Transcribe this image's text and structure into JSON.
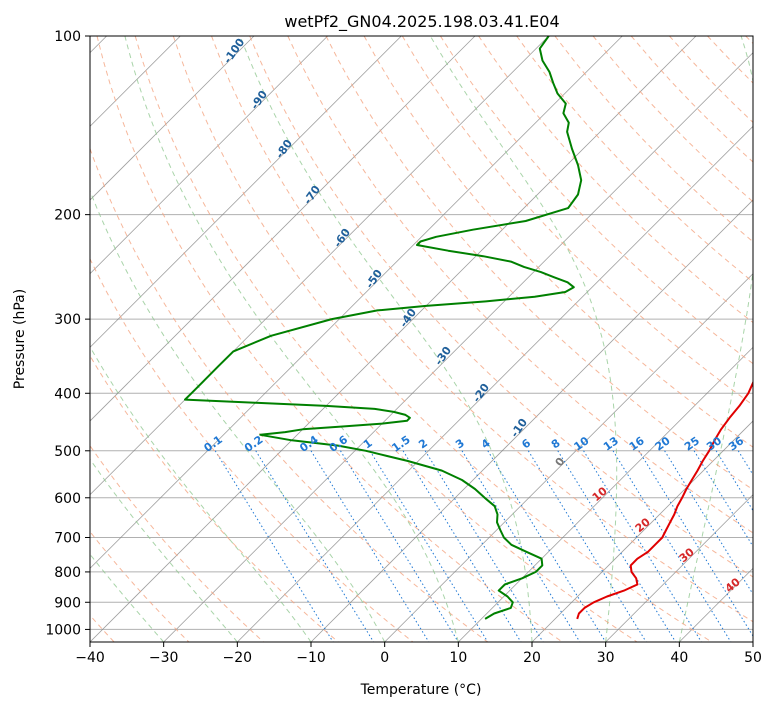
{
  "chart_data": {
    "type": "line",
    "title": "wetPf2_GN04.2025.198.03.41.E04",
    "xlabel": "Temperature (°C)",
    "ylabel": "Pressure (hPa)",
    "xlim": [
      -40,
      50
    ],
    "ylim": [
      1050,
      100
    ],
    "y_scale": "log",
    "skew": true,
    "grid": true,
    "x_ticks": [
      -40,
      -30,
      -20,
      -10,
      0,
      10,
      20,
      30,
      40,
      50
    ],
    "y_ticks": [
      100,
      200,
      300,
      400,
      500,
      600,
      700,
      800,
      900,
      1000
    ],
    "series": [
      {
        "color": "#e00000",
        "p": [
          960,
          940,
          920,
          900,
          880,
          860,
          850,
          840,
          830,
          820,
          800,
          780,
          760,
          740,
          720,
          700,
          680,
          660,
          640,
          620,
          600,
          580,
          560,
          540,
          520,
          500,
          480,
          460,
          440,
          420,
          400,
          380,
          360,
          340,
          320,
          300,
          280,
          260,
          240,
          220,
          200,
          180,
          160,
          140,
          120,
          110,
          104,
          100
        ],
        "t": [
          23.0,
          22.5,
          22.5,
          23.0,
          24.0,
          25.5,
          26.0,
          26.5,
          26.0,
          25.5,
          24.0,
          23.0,
          23.0,
          23.5,
          23.5,
          23.5,
          23.0,
          22.5,
          22.0,
          21.3,
          20.8,
          20.2,
          19.7,
          19.2,
          18.6,
          18.1,
          17.4,
          16.8,
          16.4,
          16.1,
          15.6,
          14.6,
          13.5,
          12.2,
          10.8,
          8.9,
          7.2,
          5.4,
          3.4,
          1.2,
          -1.0,
          -3.8,
          -6.3,
          -9.5,
          -15.5,
          -19.7,
          -24.0,
          -24.6
        ]
      },
      {
        "color": "#008000",
        "p": [
          960,
          940,
          920,
          900,
          880,
          860,
          840,
          820,
          800,
          780,
          760,
          740,
          720,
          700,
          680,
          660,
          640,
          620,
          600,
          580,
          560,
          540,
          520,
          510,
          500,
          490,
          480,
          470,
          465,
          460,
          455,
          450,
          445,
          440,
          435,
          430,
          425,
          420,
          415,
          410,
          400,
          390,
          380,
          360,
          340,
          320,
          300,
          290,
          285,
          280,
          275,
          270,
          265,
          260,
          255,
          250,
          245,
          240,
          235,
          230,
          225,
          222,
          218,
          212,
          205,
          195,
          185,
          175,
          165,
          155,
          145,
          140,
          135,
          130,
          125,
          120,
          115,
          110,
          105,
          100
        ],
        "t": [
          10.5,
          11.0,
          12.5,
          12.0,
          10.5,
          8.5,
          8.5,
          10.0,
          11.0,
          11.0,
          10.0,
          7.0,
          4.0,
          2.0,
          0.5,
          -1.0,
          -2.0,
          -3.5,
          -6.0,
          -8.5,
          -11.5,
          -15.5,
          -21.5,
          -25.0,
          -28.5,
          -33.0,
          -40.0,
          -45.0,
          -42.0,
          -40.0,
          -35.0,
          -30.0,
          -27.0,
          -27.0,
          -28.0,
          -30.0,
          -33.0,
          -40.0,
          -50.0,
          -60.0,
          -60.0,
          -60.0,
          -60.0,
          -60.0,
          -60.0,
          -57.0,
          -51.0,
          -46.0,
          -40.0,
          -32.5,
          -26.5,
          -23.0,
          -22.5,
          -24.0,
          -26.5,
          -29.0,
          -32.0,
          -34.5,
          -39.0,
          -44.5,
          -49.5,
          -49.5,
          -48.0,
          -44.0,
          -38.0,
          -34.0,
          -34.5,
          -36.0,
          -38.5,
          -41.5,
          -44.5,
          -45.5,
          -47.5,
          -48.5,
          -51.0,
          -53.0,
          -55.0,
          -57.5,
          -59.5,
          -60.0
        ]
      }
    ],
    "dry_adiabats": [
      -100,
      -90,
      -80,
      -70,
      -60,
      -50,
      -40,
      -30,
      -20,
      -10,
      0,
      10,
      20,
      30,
      40
    ],
    "moist_adiabats": [
      0,
      10,
      20,
      30,
      40
    ],
    "mixing_ratios": [
      "0.1",
      "0.2",
      "0.4",
      "0.6",
      "1",
      "1.5",
      "2",
      "3",
      "4",
      "6",
      "8",
      "10",
      "13",
      "16",
      "20",
      "25",
      "30",
      "36"
    ],
    "colors": {
      "grid": "#b0b0b0",
      "isotherm": "#808080",
      "dry_adiabat": "#f4a582",
      "moist_adiabat": "#8cc68c",
      "mixing_ratio": "#1f78d4",
      "dry_label": "#1f5f9a",
      "moist_label": "#d62728"
    }
  }
}
